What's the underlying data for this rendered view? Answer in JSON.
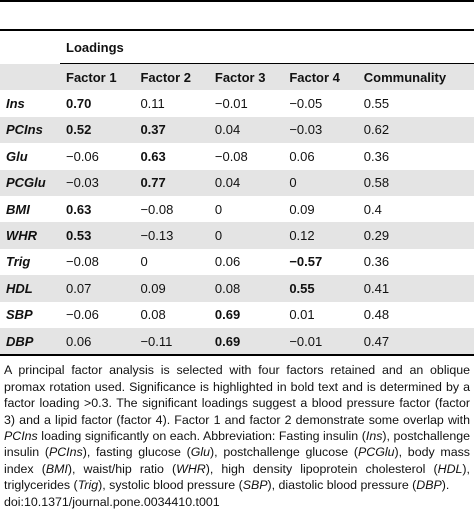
{
  "table": {
    "group_header": "Loadings",
    "columns": [
      "",
      "Factor 1",
      "Factor 2",
      "Factor 3",
      "Factor 4",
      "Communality"
    ],
    "rows": [
      {
        "label": "Ins",
        "cells": [
          "0.70",
          "0.11",
          "−0.01",
          "−0.05",
          "0.55"
        ],
        "bold": [
          0
        ]
      },
      {
        "label": "PCIns",
        "cells": [
          "0.52",
          "0.37",
          "0.04",
          "−0.03",
          "0.62"
        ],
        "bold": [
          0,
          1
        ]
      },
      {
        "label": "Glu",
        "cells": [
          "−0.06",
          "0.63",
          "−0.08",
          "0.06",
          "0.36"
        ],
        "bold": [
          1
        ]
      },
      {
        "label": "PCGlu",
        "cells": [
          "−0.03",
          "0.77",
          "0.04",
          "0",
          "0.58"
        ],
        "bold": [
          1
        ]
      },
      {
        "label": "BMI",
        "cells": [
          "0.63",
          "−0.08",
          "0",
          "0.09",
          "0.4"
        ],
        "bold": [
          0
        ]
      },
      {
        "label": "WHR",
        "cells": [
          "0.53",
          "−0.13",
          "0",
          "0.12",
          "0.29"
        ],
        "bold": [
          0
        ]
      },
      {
        "label": "Trig",
        "cells": [
          "−0.08",
          "0",
          "0.06",
          "−0.57",
          "0.36"
        ],
        "bold": [
          3
        ]
      },
      {
        "label": "HDL",
        "cells": [
          "0.07",
          "0.09",
          "0.08",
          "0.55",
          "0.41"
        ],
        "bold": [
          3
        ]
      },
      {
        "label": "SBP",
        "cells": [
          "−0.06",
          "0.08",
          "0.69",
          "0.01",
          "0.48"
        ],
        "bold": [
          2
        ]
      },
      {
        "label": "DBP",
        "cells": [
          "0.06",
          "−0.11",
          "0.69",
          "−0.01",
          "0.47"
        ],
        "bold": [
          2
        ]
      }
    ]
  },
  "footnote": {
    "segments": [
      {
        "text": "A principal factor analysis is selected with four factors retained and an oblique promax rotation used. Significance is highlighted in bold text and is determined by a factor loading >0.3. The significant loadings suggest a blood pressure factor (factor 3) and a lipid factor (factor 4). Factor 1 and factor 2 demonstrate some overlap with ",
        "italic": false
      },
      {
        "text": "PCIns",
        "italic": true
      },
      {
        "text": " loading significantly on each. Abbreviation: Fasting insulin (",
        "italic": false
      },
      {
        "text": "Ins",
        "italic": true
      },
      {
        "text": "), postchallenge insulin (",
        "italic": false
      },
      {
        "text": "PCIns",
        "italic": true
      },
      {
        "text": "), fasting glucose (",
        "italic": false
      },
      {
        "text": "Glu",
        "italic": true
      },
      {
        "text": "), postchallenge glucose (",
        "italic": false
      },
      {
        "text": "PCGlu",
        "italic": true
      },
      {
        "text": "), body mass index (",
        "italic": false
      },
      {
        "text": "BMI",
        "italic": true
      },
      {
        "text": "), waist/hip ratio (",
        "italic": false
      },
      {
        "text": "WHR",
        "italic": true
      },
      {
        "text": "), high density lipoprotein cholesterol (",
        "italic": false
      },
      {
        "text": "HDL",
        "italic": true
      },
      {
        "text": "), triglycerides (",
        "italic": false
      },
      {
        "text": "Trig",
        "italic": true
      },
      {
        "text": "), systolic blood pressure (",
        "italic": false
      },
      {
        "text": "SBP",
        "italic": true
      },
      {
        "text": "), diastolic blood pressure (",
        "italic": false
      },
      {
        "text": "DBP",
        "italic": true
      },
      {
        "text": ").",
        "italic": false
      }
    ],
    "doi": "doi:10.1371/journal.pone.0034410.t001"
  }
}
